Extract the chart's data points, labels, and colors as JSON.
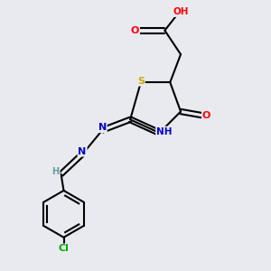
{
  "background_color": "#e8eaf0",
  "bond_color": "#000000",
  "atom_colors": {
    "O": "#ff0000",
    "N": "#0000cc",
    "S": "#ccaa00",
    "Cl": "#00aa00",
    "C": "#000000",
    "H": "#5f9ea0"
  },
  "figsize": [
    3.0,
    3.0
  ],
  "dpi": 100
}
